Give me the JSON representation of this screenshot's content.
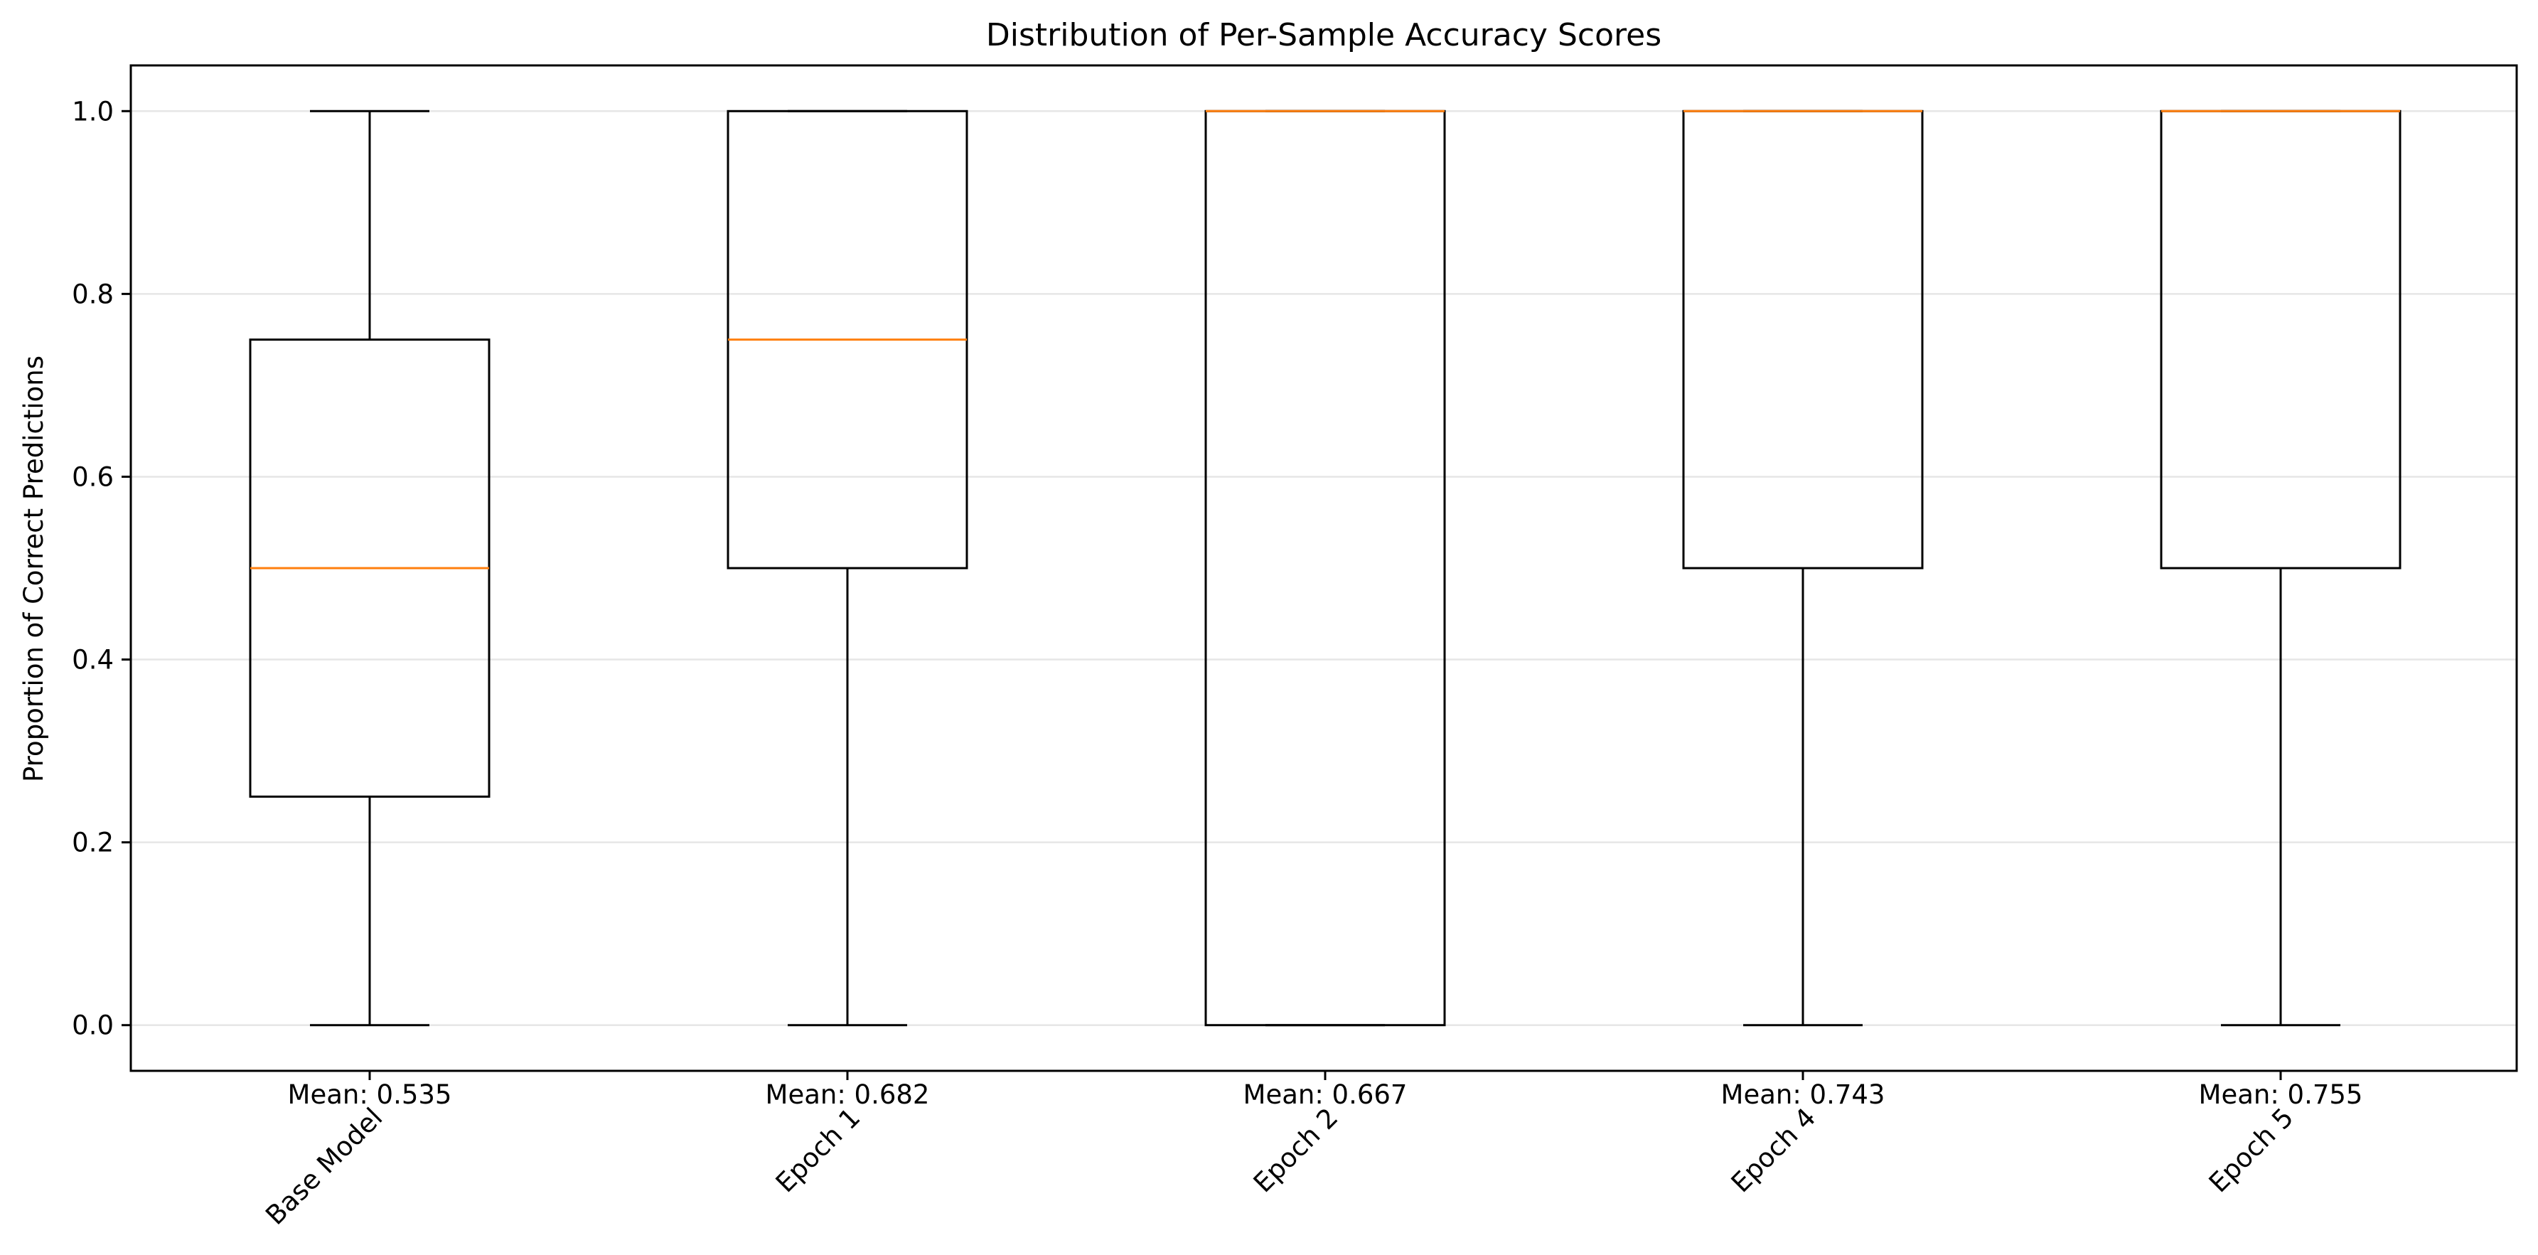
{
  "chart_data": {
    "type": "boxplot",
    "title": "Distribution of Per-Sample Accuracy Scores",
    "xlabel": "",
    "ylabel": "Proportion of Correct Predictions",
    "ylim": [
      -0.05,
      1.05
    ],
    "yticks": [
      0.0,
      0.2,
      0.4,
      0.6,
      0.8,
      1.0
    ],
    "ytick_labels": [
      "0.0",
      "0.2",
      "0.4",
      "0.6",
      "0.8",
      "1.0"
    ],
    "grid": "horizontal",
    "categories": [
      "Base Model",
      "Epoch 1",
      "Epoch 2",
      "Epoch 4",
      "Epoch 5"
    ],
    "boxes": [
      {
        "category": "Base Model",
        "whisker_low": 0.0,
        "q1": 0.25,
        "median": 0.5,
        "q3": 0.75,
        "whisker_high": 1.0,
        "mean_label": "Mean: 0.535"
      },
      {
        "category": "Epoch 1",
        "whisker_low": 0.0,
        "q1": 0.5,
        "median": 0.75,
        "q3": 1.0,
        "whisker_high": 1.0,
        "mean_label": "Mean: 0.682"
      },
      {
        "category": "Epoch 2",
        "whisker_low": 0.0,
        "q1": 0.0,
        "median": 1.0,
        "q3": 1.0,
        "whisker_high": 1.0,
        "mean_label": "Mean: 0.667"
      },
      {
        "category": "Epoch 4",
        "whisker_low": 0.0,
        "q1": 0.5,
        "median": 1.0,
        "q3": 1.0,
        "whisker_high": 1.0,
        "mean_label": "Mean: 0.743"
      },
      {
        "category": "Epoch 5",
        "whisker_low": 0.0,
        "q1": 0.5,
        "median": 1.0,
        "q3": 1.0,
        "whisker_high": 1.0,
        "mean_label": "Mean: 0.755"
      }
    ],
    "colors": {
      "box": "#000000",
      "median": "#ff7f0e",
      "grid": "#e6e6e6"
    }
  }
}
